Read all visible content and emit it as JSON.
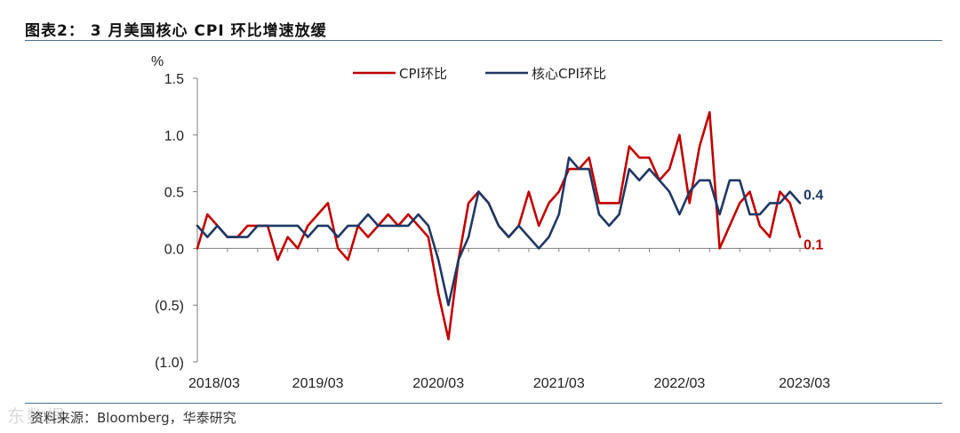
{
  "figure": {
    "title": "图表2： 3 月美国核心 CPI 环比增速放缓",
    "source": "资料来源：Bloomberg，华泰研究",
    "watermark": "东数据"
  },
  "colors": {
    "cpi": "#c00000",
    "core": "#1f3864",
    "rule": "#4e6e8e"
  },
  "chart_data": {
    "type": "line",
    "title": "",
    "ylabel": "%",
    "ylim": [
      -1.0,
      1.5
    ],
    "yticks": [
      1.5,
      1.0,
      0.5,
      0.0,
      -0.5,
      -1.0
    ],
    "ytick_labels": [
      "1.5",
      "1.0",
      "0.5",
      "0.0",
      "(0.5)",
      "(1.0)"
    ],
    "x_tick_labels": [
      "2018/03",
      "2019/03",
      "2020/03",
      "2021/03",
      "2022/03",
      "2023/03"
    ],
    "x_tick_indices": [
      0,
      12,
      24,
      36,
      48,
      60
    ],
    "legend_position": "top",
    "series": [
      {
        "name": "CPI环比",
        "values": [
          0.0,
          0.3,
          0.2,
          0.1,
          0.1,
          0.2,
          0.2,
          0.2,
          -0.1,
          0.1,
          0.0,
          0.2,
          0.3,
          0.4,
          0.0,
          -0.1,
          0.2,
          0.1,
          0.2,
          0.3,
          0.2,
          0.3,
          0.2,
          0.1,
          -0.4,
          -0.8,
          -0.1,
          0.4,
          0.5,
          0.4,
          0.2,
          0.1,
          0.2,
          0.5,
          0.2,
          0.4,
          0.5,
          0.7,
          0.7,
          0.8,
          0.4,
          0.4,
          0.4,
          0.9,
          0.8,
          0.8,
          0.6,
          0.7,
          1.0,
          0.4,
          0.9,
          1.2,
          0.0,
          0.2,
          0.4,
          0.5,
          0.2,
          0.1,
          0.5,
          0.4,
          0.1
        ],
        "end_label": "0.1"
      },
      {
        "name": "核心CPI环比",
        "values": [
          0.2,
          0.1,
          0.2,
          0.1,
          0.1,
          0.1,
          0.2,
          0.2,
          0.2,
          0.2,
          0.2,
          0.1,
          0.2,
          0.2,
          0.1,
          0.2,
          0.2,
          0.3,
          0.2,
          0.2,
          0.2,
          0.2,
          0.3,
          0.2,
          -0.1,
          -0.5,
          -0.1,
          0.1,
          0.5,
          0.4,
          0.2,
          0.1,
          0.2,
          0.1,
          0.0,
          0.1,
          0.3,
          0.8,
          0.7,
          0.7,
          0.3,
          0.2,
          0.3,
          0.7,
          0.6,
          0.7,
          0.6,
          0.5,
          0.3,
          0.5,
          0.6,
          0.6,
          0.3,
          0.6,
          0.6,
          0.3,
          0.3,
          0.4,
          0.4,
          0.5,
          0.4
        ],
        "end_label": "0.4"
      }
    ]
  }
}
